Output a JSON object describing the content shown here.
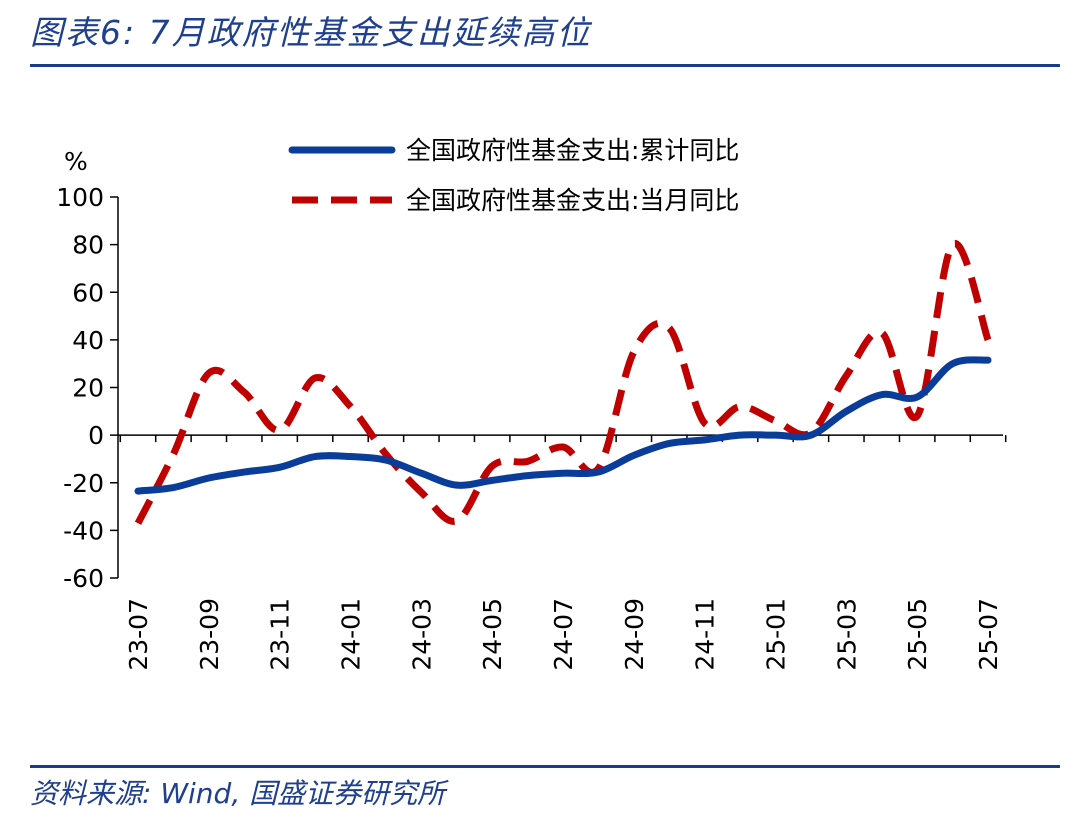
{
  "title": "图表6:  7月政府性基金支出延续高位",
  "source": "资料来源: Wind, 国盛证券研究所",
  "colors": {
    "cumulative": "#0a3d9a",
    "monthly": "#c00000",
    "rule": "#1a3a8c",
    "title": "#1f3f8f"
  },
  "chart_data": {
    "type": "line",
    "ylabel": "%",
    "ylim": [
      -60,
      100
    ],
    "yticks": [
      100,
      80,
      60,
      40,
      20,
      0,
      -20,
      -40,
      -60
    ],
    "xtick_labels": [
      "23-07",
      "23-09",
      "23-11",
      "24-01",
      "24-03",
      "24-05",
      "24-07",
      "24-09",
      "24-11",
      "25-01",
      "25-03",
      "25-05",
      "25-07"
    ],
    "x": [
      "23-07",
      "23-08",
      "23-09",
      "23-10",
      "23-11",
      "23-12",
      "24-01",
      "24-02",
      "24-03",
      "24-04",
      "24-05",
      "24-06",
      "24-07",
      "24-08",
      "24-09",
      "24-10",
      "24-11",
      "24-12",
      "25-01",
      "25-02",
      "25-03",
      "25-04",
      "25-05",
      "25-06",
      "25-07"
    ],
    "legend_position": "top",
    "series": [
      {
        "name": "全国政府性基金支出:累计同比",
        "style": "solid",
        "values": [
          -23.5,
          -22,
          -18,
          -15.5,
          -13.5,
          -9,
          -9,
          -10.5,
          -16,
          -21,
          -19,
          -17,
          -16,
          -15.5,
          -8.5,
          -3.5,
          -2,
          0,
          0,
          0,
          10,
          17,
          16,
          30,
          31.5
        ]
      },
      {
        "name": "全国政府性基金支出:当月同比",
        "style": "dashed",
        "values": [
          -37,
          -8,
          26,
          18,
          2,
          24,
          12,
          -8,
          -24,
          -36,
          -13,
          -11,
          -5,
          -14,
          35,
          45,
          5,
          12,
          6,
          1,
          25,
          43,
          8,
          80,
          40
        ]
      }
    ]
  }
}
